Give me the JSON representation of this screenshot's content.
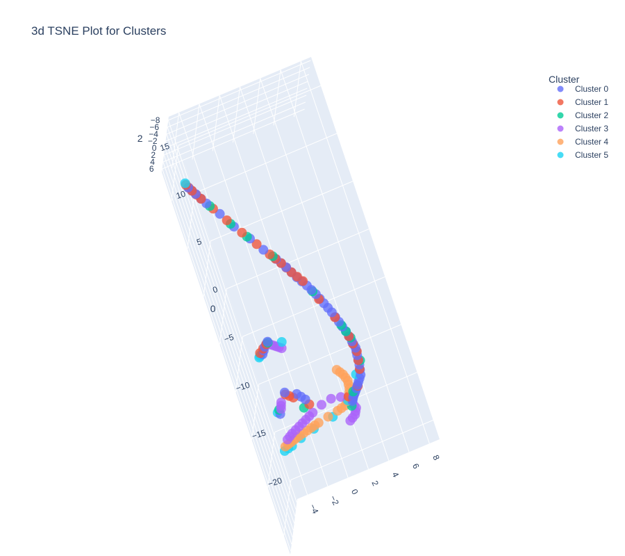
{
  "chart_data": {
    "type": "scatter",
    "title": "3d TSNE Plot for Clusters",
    "axes": {
      "x": {
        "label": "",
        "range": [
          -5,
          9
        ],
        "ticks": [
          "−4",
          "−2",
          "0",
          "2",
          "4",
          "6",
          "8"
        ]
      },
      "y": {
        "label": "0",
        "range": [
          -22,
          18
        ],
        "ticks": [
          "−20",
          "−15",
          "−10",
          "−5",
          "0",
          "5",
          "10",
          "15"
        ]
      },
      "z": {
        "label": "2",
        "range": [
          -9,
          7
        ],
        "ticks": [
          "6",
          "4",
          "2",
          "0",
          "−2",
          "−4",
          "−6",
          "−8"
        ]
      }
    },
    "legend": {
      "title": "Cluster",
      "placement": "top-right",
      "entries": [
        "Cluster 0",
        "Cluster 1",
        "Cluster 2",
        "Cluster 3",
        "Cluster 4",
        "Cluster 5"
      ]
    },
    "colors": [
      "#636efa",
      "#EF553B",
      "#00cc96",
      "#ab63fa",
      "#FFA15A",
      "#19d3f3"
    ],
    "background": "#e5ecf6",
    "series": [
      {
        "name": "Cluster 0",
        "points": [
          [
            3.4,
            -13.4,
            -3.2
          ],
          [
            3.6,
            -13.0,
            -3.0
          ],
          [
            3.9,
            -12.6,
            -2.8
          ],
          [
            4.2,
            -12.2,
            -2.6
          ],
          [
            4.6,
            -11.6,
            -2.4
          ],
          [
            5.0,
            -11.0,
            -2.2
          ],
          [
            5.2,
            -10.0,
            -2.1
          ],
          [
            5.3,
            -9.0,
            -2.0
          ],
          [
            5.4,
            -8.2,
            -1.8
          ],
          [
            5.3,
            -7.4,
            -1.6
          ],
          [
            5.1,
            -6.2,
            -1.4
          ],
          [
            4.8,
            -5.0,
            -1.2
          ],
          [
            4.5,
            -3.8,
            -1.0
          ],
          [
            4.1,
            -2.6,
            -0.8
          ],
          [
            3.7,
            -1.4,
            -0.6
          ],
          [
            3.2,
            -0.2,
            -0.4
          ],
          [
            2.6,
            1.0,
            -0.2
          ],
          [
            2.0,
            2.4,
            0.0
          ],
          [
            1.4,
            3.6,
            0.2
          ],
          [
            0.6,
            5.0,
            0.4
          ],
          [
            -0.2,
            6.6,
            0.6
          ],
          [
            -1.2,
            8.4,
            0.9
          ],
          [
            -2.0,
            10.2,
            1.2
          ],
          [
            -2.8,
            11.8,
            1.6
          ],
          [
            -3.4,
            13.2,
            2.0
          ],
          [
            -3.8,
            14.2,
            2.4
          ],
          [
            -3.2,
            -11.8,
            -3.2
          ],
          [
            -2.2,
            -10.0,
            -3.2
          ],
          [
            -1.2,
            -10.6,
            -3.2
          ],
          [
            -0.6,
            -11.4,
            -3.1
          ],
          [
            -2.6,
            -4.8,
            -0.4
          ],
          [
            -2.2,
            -4.2,
            -0.4
          ],
          [
            -1.8,
            -3.8,
            -0.3
          ]
        ]
      },
      {
        "name": "Cluster 1",
        "points": [
          [
            3.2,
            -12.8,
            -3.1
          ],
          [
            4.4,
            -12.0,
            -2.5
          ],
          [
            5.1,
            -10.4,
            -2.1
          ],
          [
            5.4,
            -8.6,
            -1.9
          ],
          [
            5.2,
            -6.8,
            -1.5
          ],
          [
            4.6,
            -4.4,
            -1.1
          ],
          [
            3.8,
            -2.0,
            -0.7
          ],
          [
            3.0,
            0.4,
            -0.3
          ],
          [
            2.3,
            1.7,
            -0.1
          ],
          [
            1.7,
            3.0,
            0.1
          ],
          [
            1.0,
            4.3,
            0.3
          ],
          [
            0.2,
            5.8,
            0.5
          ],
          [
            -0.7,
            7.5,
            0.75
          ],
          [
            -1.6,
            9.3,
            1.05
          ],
          [
            -2.4,
            11.0,
            1.4
          ],
          [
            -3.1,
            12.5,
            1.8
          ],
          [
            -3.6,
            13.7,
            2.2
          ],
          [
            -3.9,
            14.6,
            2.6
          ],
          [
            -2.2,
            -10.2,
            -3.2
          ],
          [
            -1.6,
            -10.8,
            -3.2
          ],
          [
            -0.4,
            -12.0,
            -3.1
          ],
          [
            -2.8,
            -4.6,
            -0.45
          ],
          [
            -2.0,
            -4.0,
            -0.35
          ]
        ]
      },
      {
        "name": "Cluster 2",
        "points": [
          [
            3.8,
            -12.4,
            -2.7
          ],
          [
            5.4,
            -9.6,
            -2.05
          ],
          [
            5.3,
            -7.0,
            -1.55
          ],
          [
            4.9,
            -5.4,
            -1.25
          ],
          [
            3.5,
            -1.0,
            -0.55
          ],
          [
            1.2,
            4.0,
            0.25
          ],
          [
            -0.4,
            6.9,
            0.65
          ],
          [
            -1.4,
            8.8,
            0.95
          ],
          [
            -2.6,
            11.4,
            1.5
          ],
          [
            -3.2,
            -11.4,
            -3.3
          ],
          [
            -1.8,
            -3.9,
            -0.3
          ],
          [
            -1.0,
            -12.2,
            -3.4
          ],
          [
            3.2,
            -13.8,
            -3.2
          ]
        ]
      },
      {
        "name": "Cluster 3",
        "points": [
          [
            -3.4,
            -14.6,
            -3.8
          ],
          [
            -2.8,
            -14.2,
            -3.7
          ],
          [
            -2.0,
            -13.8,
            -3.6
          ],
          [
            -1.2,
            -13.4,
            -3.5
          ],
          [
            -0.4,
            -13.0,
            -3.45
          ],
          [
            0.6,
            -12.6,
            -3.4
          ],
          [
            1.6,
            -12.4,
            -3.35
          ],
          [
            2.5,
            -12.6,
            -3.3
          ],
          [
            3.3,
            -13.6,
            -3.3
          ],
          [
            3.5,
            -14.2,
            -3.35
          ],
          [
            3.2,
            -14.8,
            -3.4
          ],
          [
            2.6,
            -15.2,
            -3.5
          ],
          [
            -3.0,
            -11.4,
            -3.3
          ],
          [
            -2.8,
            -10.8,
            -3.3
          ],
          [
            -1.6,
            -4.2,
            -0.3
          ],
          [
            -1.2,
            -4.6,
            -0.4
          ],
          [
            -0.8,
            -5.0,
            -0.5
          ]
        ]
      },
      {
        "name": "Cluster 4",
        "points": [
          [
            -3.8,
            -15.2,
            -3.9
          ],
          [
            -3.2,
            -15.0,
            -3.8
          ],
          [
            -2.6,
            -14.8,
            -3.75
          ],
          [
            -1.8,
            -14.6,
            -3.7
          ],
          [
            -1.0,
            -14.4,
            -3.65
          ],
          [
            -0.2,
            -14.2,
            -3.6
          ],
          [
            0.8,
            -14.0,
            -3.55
          ],
          [
            1.8,
            -13.8,
            -3.5
          ],
          [
            2.6,
            -13.6,
            -3.45
          ],
          [
            3.2,
            -12.9,
            -3.35
          ],
          [
            3.5,
            -12.1,
            -3.2
          ],
          [
            3.6,
            -11.3,
            -3.05
          ],
          [
            3.4,
            -10.5,
            -2.9
          ],
          [
            3.0,
            -9.8,
            -2.8
          ]
        ]
      },
      {
        "name": "Cluster 5",
        "points": [
          [
            -4.0,
            -15.6,
            -4.0
          ],
          [
            -3.2,
            -15.4,
            -3.9
          ],
          [
            -2.2,
            -15.0,
            -3.8
          ],
          [
            -0.8,
            -14.6,
            -3.7
          ],
          [
            1.2,
            -14.2,
            -3.6
          ],
          [
            3.0,
            -13.2,
            -3.35
          ],
          [
            -3.4,
            -11.6,
            -3.3
          ],
          [
            -3.0,
            -5.0,
            -0.5
          ],
          [
            -2.8,
            -4.8,
            -0.45
          ],
          [
            -0.6,
            -4.4,
            -0.4
          ],
          [
            4.6,
            -10.8,
            -2.3
          ],
          [
            -3.9,
            14.8,
            2.7
          ]
        ]
      }
    ]
  }
}
